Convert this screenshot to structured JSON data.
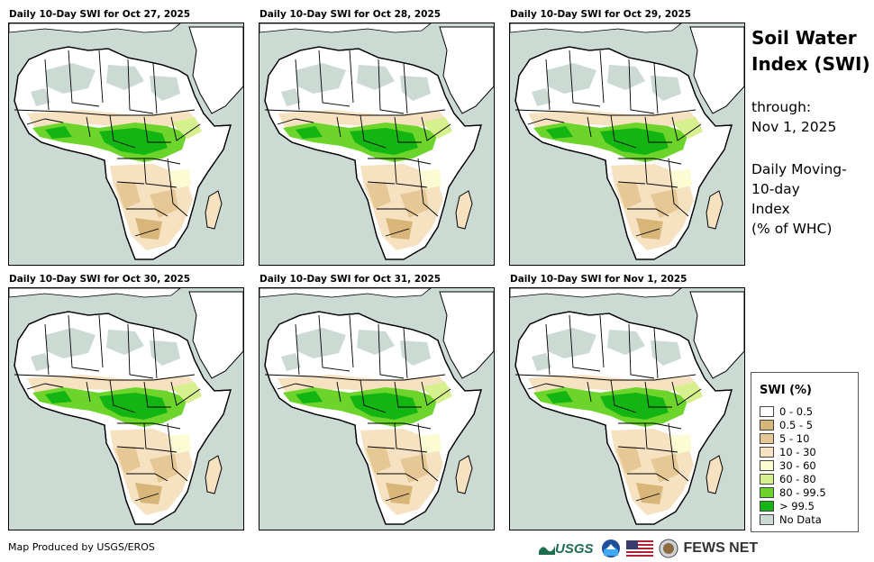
{
  "panels": [
    {
      "title": "Daily 10-Day SWI for Oct 27, 2025"
    },
    {
      "title": "Daily 10-Day SWI for Oct 28, 2025"
    },
    {
      "title": "Daily 10-Day SWI for Oct 29, 2025"
    },
    {
      "title": "Daily 10-Day SWI for Oct 30, 2025"
    },
    {
      "title": "Daily 10-Day SWI for Oct 31, 2025"
    },
    {
      "title": "Daily 10-Day SWI for Nov 1, 2025"
    }
  ],
  "sidebar": {
    "title_line1": "Soil Water",
    "title_line2": "Index (SWI)",
    "through_label": "through:",
    "through_date": "Nov 1, 2025",
    "desc_line1": "Daily Moving-",
    "desc_line2": "10-day",
    "desc_line3": "Index",
    "desc_line4": "(% of WHC)"
  },
  "legend": {
    "title": "SWI (%)",
    "items": [
      {
        "label": "0 - 0.5",
        "color": "#ffffff"
      },
      {
        "label": "0.5 - 5",
        "color": "#d8b67a"
      },
      {
        "label": "5 - 10",
        "color": "#e6c896"
      },
      {
        "label": "10 - 30",
        "color": "#f6e2c0"
      },
      {
        "label": "30 - 60",
        "color": "#fbfbd4"
      },
      {
        "label": "60 - 80",
        "color": "#d6f08e"
      },
      {
        "label": "80 - 99.5",
        "color": "#6cd42a"
      },
      {
        "label": "> 99.5",
        "color": "#13b512"
      },
      {
        "label": "No Data",
        "color": "#ccdad4"
      }
    ]
  },
  "footer": {
    "credit": "Map Produced by USGS/EROS",
    "usgs_logo": "USGS",
    "fews_logo": "FEWS NET"
  }
}
